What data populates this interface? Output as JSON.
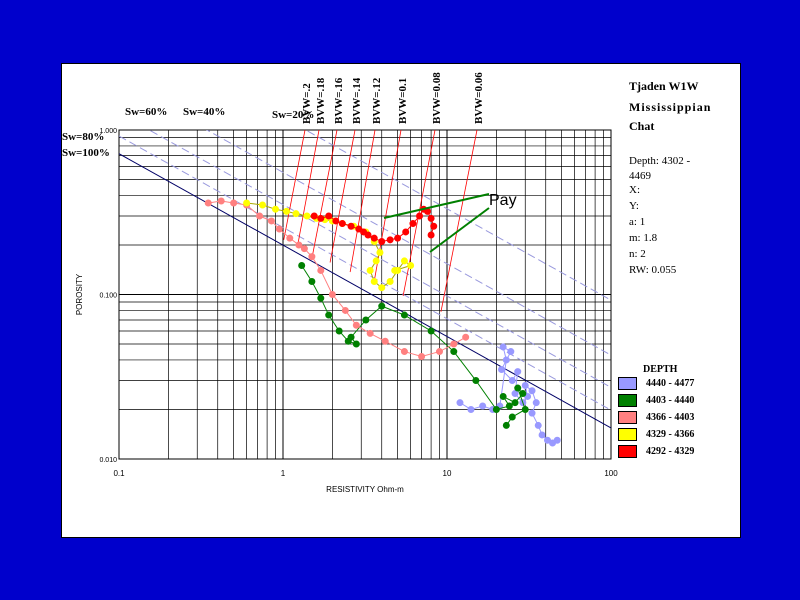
{
  "title": "Tjaden W1W",
  "formation_line1": "Mississippian",
  "formation_line2": "Chat",
  "info": {
    "depth": "Depth: 4302 - 4469",
    "x": "X:",
    "y": "Y:",
    "a": "a: 1",
    "m": "m: 1.8",
    "n": "n: 2",
    "rw": "RW: 0.055"
  },
  "annotation": "Pay",
  "legend": {
    "title": "DEPTH",
    "items": [
      {
        "label": "4440 - 4477",
        "color": "#9999ff"
      },
      {
        "label": "4403 - 4440",
        "color": "#008000"
      },
      {
        "label": "4366 - 4403",
        "color": "#ff8080"
      },
      {
        "label": "4329 - 4366",
        "color": "#ffff00"
      },
      {
        "label": "4292 - 4329",
        "color": "#ff0000"
      }
    ]
  },
  "chart_data": {
    "type": "scatter",
    "title": "Tjaden W1W",
    "xlabel": "RESISTIVITY Ohm-m",
    "ylabel": "POROSITY",
    "x_scale": "log",
    "y_scale": "log",
    "xlim": [
      0.1,
      100
    ],
    "ylim": [
      0.01,
      1
    ],
    "x_ticks": [
      "0.1",
      "1",
      "10",
      "100"
    ],
    "y_ticks": [
      "1.000",
      "0.100",
      "0.010"
    ],
    "grid": true,
    "legend_position": "right",
    "sw_lines": [
      {
        "label": "Sw=100%",
        "sw": 1.0
      },
      {
        "label": "Sw=80%",
        "sw": 0.8
      },
      {
        "label": "Sw=60%",
        "sw": 0.6
      },
      {
        "label": "Sw=40%",
        "sw": 0.4
      },
      {
        "label": "Sw=20%",
        "sw": 0.2
      }
    ],
    "bvw_lines": [
      {
        "label": "BVW=.2",
        "bvw": 0.2
      },
      {
        "label": "BVW=.18",
        "bvw": 0.18
      },
      {
        "label": "BVW=.16",
        "bvw": 0.16
      },
      {
        "label": "BVW=.14",
        "bvw": 0.14
      },
      {
        "label": "BVW=.12",
        "bvw": 0.12
      },
      {
        "label": "BVW=0.1",
        "bvw": 0.1
      },
      {
        "label": "BVW=0.08",
        "bvw": 0.08
      },
      {
        "label": "BVW=0.06",
        "bvw": 0.06
      }
    ],
    "series": [
      {
        "name": "4440 - 4477",
        "color": "#9999ff",
        "x": [
          12.0,
          14.0,
          16.5,
          19.0,
          21.0,
          23.0,
          22.0,
          24.5,
          21.5,
          25.0,
          27.0,
          26.0,
          29.0,
          31.0,
          30.0,
          33.0,
          35.0,
          33.0,
          36.0,
          38.0,
          41.0,
          44.0,
          47.0
        ],
        "y": [
          0.022,
          0.02,
          0.021,
          0.02,
          0.021,
          0.04,
          0.048,
          0.045,
          0.035,
          0.03,
          0.034,
          0.025,
          0.022,
          0.024,
          0.028,
          0.026,
          0.022,
          0.019,
          0.016,
          0.014,
          0.013,
          0.0125,
          0.013
        ]
      },
      {
        "name": "4403 - 4440",
        "color": "#008000",
        "x": [
          1.3,
          1.5,
          1.7,
          1.9,
          2.2,
          2.5,
          2.8,
          2.6,
          3.2,
          4.0,
          5.5,
          8.0,
          11.0,
          15.0,
          20.0,
          24.0,
          22.0,
          26.0,
          29.0,
          27.0,
          30.0,
          25.0,
          23.0
        ],
        "y": [
          0.15,
          0.12,
          0.095,
          0.075,
          0.06,
          0.052,
          0.05,
          0.055,
          0.07,
          0.085,
          0.075,
          0.06,
          0.045,
          0.03,
          0.02,
          0.021,
          0.024,
          0.022,
          0.025,
          0.027,
          0.02,
          0.018,
          0.016
        ]
      },
      {
        "name": "4366 - 4403",
        "color": "#ff8080",
        "x": [
          0.35,
          0.42,
          0.5,
          0.6,
          0.72,
          0.85,
          0.95,
          1.1,
          1.25,
          1.35,
          1.5,
          1.7,
          2.0,
          2.4,
          2.8,
          3.4,
          4.2,
          5.5,
          7.0,
          9.0,
          11.0,
          13.0
        ],
        "y": [
          0.36,
          0.37,
          0.36,
          0.35,
          0.3,
          0.28,
          0.25,
          0.22,
          0.2,
          0.19,
          0.17,
          0.14,
          0.1,
          0.08,
          0.065,
          0.058,
          0.052,
          0.045,
          0.042,
          0.045,
          0.05,
          0.055
        ]
      },
      {
        "name": "4329 - 4366",
        "color": "#ffff00",
        "x": [
          0.6,
          0.75,
          0.9,
          1.05,
          1.2,
          1.4,
          1.6,
          1.8,
          2.0,
          2.3,
          2.7,
          3.2,
          3.6,
          3.9,
          3.7,
          3.4,
          3.6,
          4.0,
          4.5,
          5.0,
          5.5,
          6.0,
          4.8
        ],
        "y": [
          0.36,
          0.35,
          0.33,
          0.32,
          0.31,
          0.3,
          0.29,
          0.285,
          0.28,
          0.27,
          0.26,
          0.24,
          0.21,
          0.18,
          0.16,
          0.14,
          0.12,
          0.11,
          0.12,
          0.14,
          0.16,
          0.15,
          0.14
        ]
      },
      {
        "name": "4292 - 4329",
        "color": "#ff0000",
        "x": [
          1.55,
          1.7,
          1.9,
          2.1,
          2.3,
          2.6,
          2.9,
          3.1,
          3.3,
          3.6,
          4.0,
          4.5,
          5.0,
          5.6,
          6.2,
          6.8,
          7.2,
          7.6,
          8.0,
          8.3,
          8.0
        ],
        "y": [
          0.3,
          0.29,
          0.3,
          0.28,
          0.27,
          0.26,
          0.25,
          0.24,
          0.23,
          0.22,
          0.21,
          0.215,
          0.22,
          0.24,
          0.27,
          0.3,
          0.33,
          0.32,
          0.29,
          0.26,
          0.23
        ]
      }
    ]
  }
}
